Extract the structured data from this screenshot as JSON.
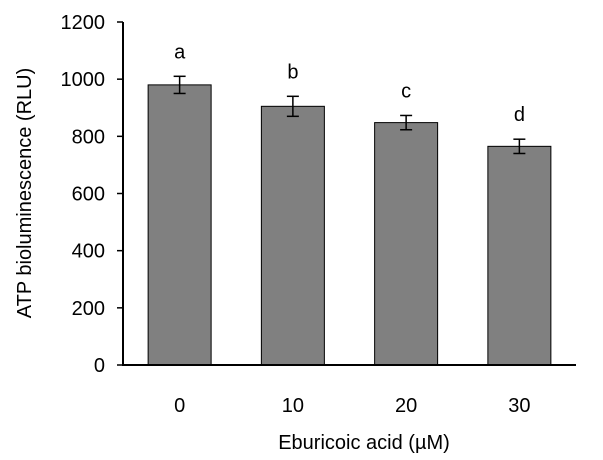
{
  "chart_data": {
    "type": "bar",
    "title": "",
    "xlabel": "Eburicoic acid (µM)",
    "ylabel": "ATP bioluminescence (RLU)",
    "categories": [
      "0",
      "10",
      "20",
      "30"
    ],
    "values": [
      980,
      905,
      848,
      765
    ],
    "errors": [
      30,
      35,
      25,
      25
    ],
    "significance_labels": [
      "a",
      "b",
      "c",
      "d"
    ],
    "ylim": [
      0,
      1200
    ],
    "yticks": [
      "0",
      "200",
      "400",
      "600",
      "800",
      "1000",
      "1200"
    ],
    "ytick_values": [
      0,
      200,
      400,
      600,
      800,
      1000,
      1200
    ],
    "grid": false,
    "legend": "none",
    "bar_color": "#808080"
  }
}
